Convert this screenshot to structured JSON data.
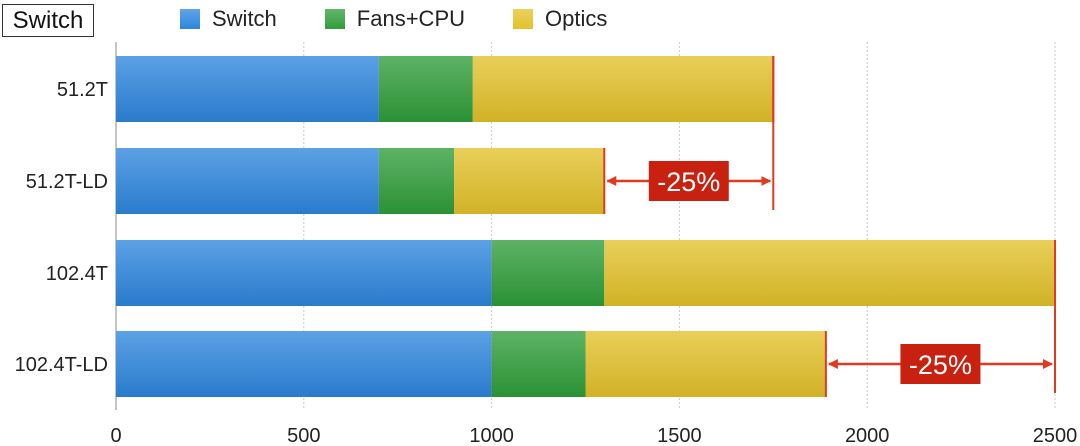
{
  "chart_data": {
    "type": "bar",
    "orientation": "horizontal",
    "stacked": true,
    "title": "Switch",
    "categories": [
      "51.2T",
      "51.2T-LD",
      "102.4T",
      "102.4T-LD"
    ],
    "series": [
      {
        "name": "Switch",
        "color": "#2e86de",
        "values": [
          700,
          700,
          1000,
          1000
        ]
      },
      {
        "name": "Fans+CPU",
        "color": "#2f9e3a",
        "values": [
          250,
          200,
          300,
          250
        ]
      },
      {
        "name": "Optics",
        "color": "#e3c22a",
        "values": [
          800,
          400,
          1200,
          640
        ]
      }
    ],
    "xlim": [
      0,
      2500
    ],
    "xticks": [
      0,
      500,
      1000,
      1500,
      2000,
      2500
    ],
    "annotations": [
      {
        "text": "-25%",
        "from": 1300,
        "to": 1750,
        "row": "51.2T-LD"
      },
      {
        "text": "-25%",
        "from": 1890,
        "to": 2500,
        "row": "102.4T-LD"
      }
    ],
    "marker_color": "#e03a1f",
    "badge_color": "#c8210f"
  }
}
